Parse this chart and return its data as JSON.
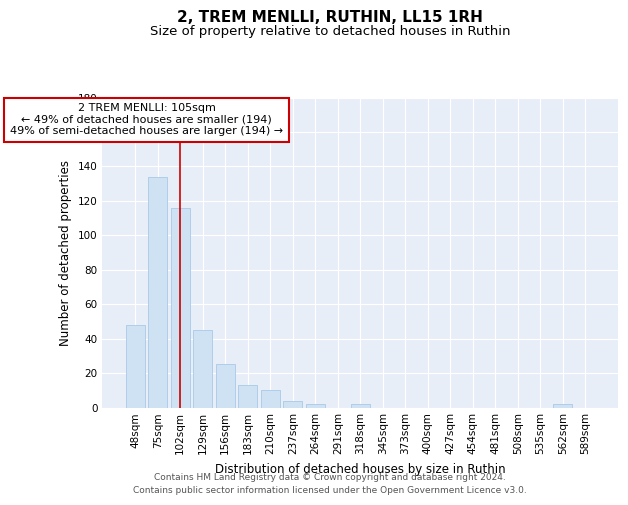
{
  "title": "2, TREM MENLLI, RUTHIN, LL15 1RH",
  "subtitle": "Size of property relative to detached houses in Ruthin",
  "xlabel": "Distribution of detached houses by size in Ruthin",
  "ylabel": "Number of detached properties",
  "bar_color": "#cfe2f3",
  "bar_edge_color": "#a8c8e8",
  "bg_color": "#e8eef8",
  "grid_color": "white",
  "categories": [
    "48sqm",
    "75sqm",
    "102sqm",
    "129sqm",
    "156sqm",
    "183sqm",
    "210sqm",
    "237sqm",
    "264sqm",
    "291sqm",
    "318sqm",
    "345sqm",
    "373sqm",
    "400sqm",
    "427sqm",
    "454sqm",
    "481sqm",
    "508sqm",
    "535sqm",
    "562sqm",
    "589sqm"
  ],
  "values": [
    48,
    134,
    116,
    45,
    25,
    13,
    10,
    4,
    2,
    0,
    2,
    0,
    0,
    0,
    0,
    0,
    0,
    0,
    0,
    2,
    0
  ],
  "ylim": [
    0,
    180
  ],
  "yticks": [
    0,
    20,
    40,
    60,
    80,
    100,
    120,
    140,
    160,
    180
  ],
  "vline_x": 2,
  "vline_color": "#cc0000",
  "annotation_line1": "2 TREM MENLLI: 105sqm",
  "annotation_line2": "← 49% of detached houses are smaller (194)",
  "annotation_line3": "49% of semi-detached houses are larger (194) →",
  "annotation_box_color": "white",
  "annotation_border_color": "#cc0000",
  "footer_text": "Contains HM Land Registry data © Crown copyright and database right 2024.\nContains public sector information licensed under the Open Government Licence v3.0.",
  "title_fontsize": 11,
  "subtitle_fontsize": 9.5,
  "xlabel_fontsize": 8.5,
  "ylabel_fontsize": 8.5,
  "tick_fontsize": 7.5,
  "annotation_fontsize": 8,
  "footer_fontsize": 6.5
}
